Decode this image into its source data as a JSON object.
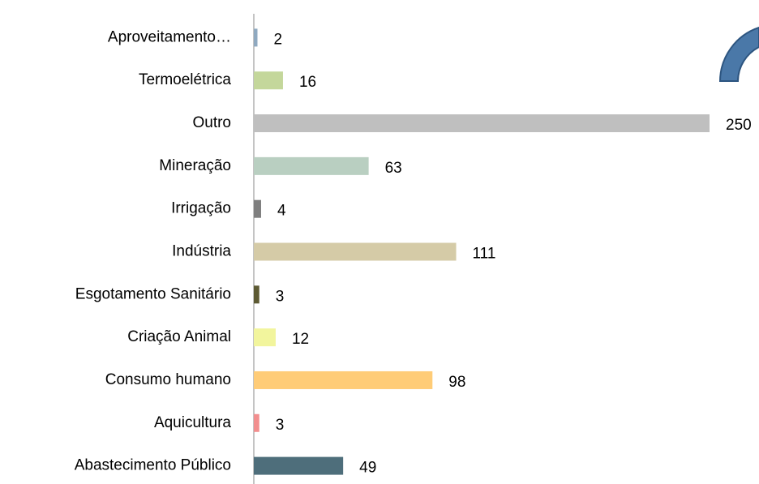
{
  "chart_data": {
    "type": "bar",
    "orientation": "horizontal",
    "categories": [
      "Aproveitamento…",
      "Termoelétrica",
      "Outro",
      "Mineração",
      "Irrigação",
      "Indústria",
      "Esgotamento Sanitário",
      "Criação Animal",
      "Consumo humano",
      "Aquicultura",
      "Abastecimento Público"
    ],
    "values": [
      2,
      16,
      250,
      63,
      4,
      111,
      3,
      12,
      98,
      3,
      49
    ],
    "colors": [
      "#8fa9c0",
      "#c4d79b",
      "#bfbfbf",
      "#b9cfc1",
      "#7f7f7f",
      "#d5cba7",
      "#5d5a33",
      "#f2f59d",
      "#ffcc77",
      "#f28e8e",
      "#4e6e7b"
    ],
    "xlim": [
      0,
      250
    ]
  }
}
